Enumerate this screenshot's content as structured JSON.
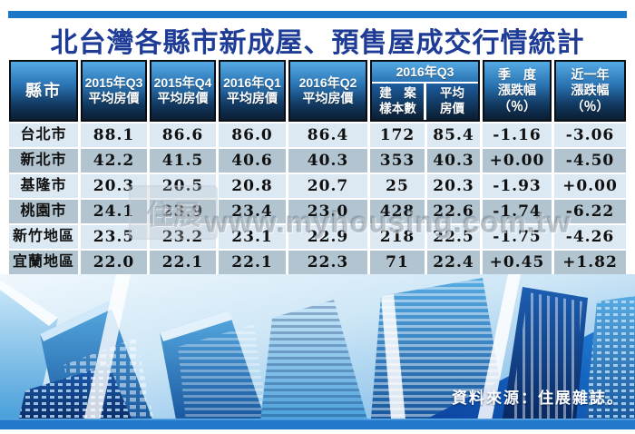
{
  "title": "北台灣各縣市新成屋、預售屋成交行情統計",
  "colors": {
    "accent_bar": "#1a78c6",
    "title_text": "#1e3c96",
    "header_gradient_top": "#55aae4",
    "header_gradient_bottom": "#0a1d31",
    "row_light": "#dce9f3",
    "row_alt": "#b1c4d0",
    "source_text": "#ffffff"
  },
  "table": {
    "header": {
      "county": "縣市",
      "q_cols": [
        "2015年Q3\n平均房價",
        "2015年Q4\n平均房價",
        "2016年Q1\n平均房價",
        "2016年Q2\n平均房價"
      ],
      "group": {
        "label": "2016年Q3",
        "sub": [
          "建　案\n樣本數",
          "平均\n房價"
        ]
      },
      "season": "季　度\n漲跌幅\n（％）",
      "year": "近一年\n漲跌幅\n（％）"
    },
    "rows": [
      {
        "county": "台北市",
        "values": [
          "88.1",
          "86.6",
          "86.0",
          "86.4",
          "172",
          "85.4",
          "-1.16",
          "-3.06"
        ]
      },
      {
        "county": "新北市",
        "values": [
          "42.2",
          "41.5",
          "40.6",
          "40.3",
          "353",
          "40.3",
          "+0.00",
          "-4.50"
        ]
      },
      {
        "county": "基隆市",
        "values": [
          "20.3",
          "20.5",
          "20.8",
          "20.7",
          "25",
          "20.3",
          "-1.93",
          "+0.00"
        ]
      },
      {
        "county": "桃園市",
        "values": [
          "24.1",
          "23.9",
          "23.4",
          "23.0",
          "428",
          "22.6",
          "-1.74",
          "-6.22"
        ]
      },
      {
        "county": "新竹地區",
        "values": [
          "23.5",
          "23.2",
          "23.1",
          "22.9",
          "218",
          "22.5",
          "-1.75",
          "-4.26"
        ]
      },
      {
        "county": "宜蘭地區",
        "values": [
          "22.0",
          "22.1",
          "22.1",
          "22.3",
          "71",
          "22.4",
          "+0.45",
          "+1.82"
        ]
      }
    ]
  },
  "watermark": {
    "logo": "住展",
    "url": "www.myhousing.com.tw"
  },
  "source_note": "資料來源：住展雜誌。",
  "chart_data": {
    "type": "table",
    "title": "北台灣各縣市新成屋、預售屋成交行情統計",
    "columns": [
      "縣市",
      "2015年Q3平均房價",
      "2015年Q4平均房價",
      "2016年Q1平均房價",
      "2016年Q2平均房價",
      "2016年Q3建案樣本數",
      "2016年Q3平均房價",
      "季度漲跌幅(%)",
      "近一年漲跌幅(%)"
    ],
    "rows": [
      [
        "台北市",
        88.1,
        86.6,
        86.0,
        86.4,
        172,
        85.4,
        -1.16,
        -3.06
      ],
      [
        "新北市",
        42.2,
        41.5,
        40.6,
        40.3,
        353,
        40.3,
        0.0,
        -4.5
      ],
      [
        "基隆市",
        20.3,
        20.5,
        20.8,
        20.7,
        25,
        20.3,
        -1.93,
        0.0
      ],
      [
        "桃園市",
        24.1,
        23.9,
        23.4,
        23.0,
        428,
        22.6,
        -1.74,
        -6.22
      ],
      [
        "新竹地區",
        23.5,
        23.2,
        23.1,
        22.9,
        218,
        22.5,
        -1.75,
        -4.26
      ],
      [
        "宜蘭地區",
        22.0,
        22.1,
        22.1,
        22.3,
        71,
        22.4,
        0.45,
        1.82
      ]
    ],
    "source": "資料來源：住展雜誌。"
  }
}
